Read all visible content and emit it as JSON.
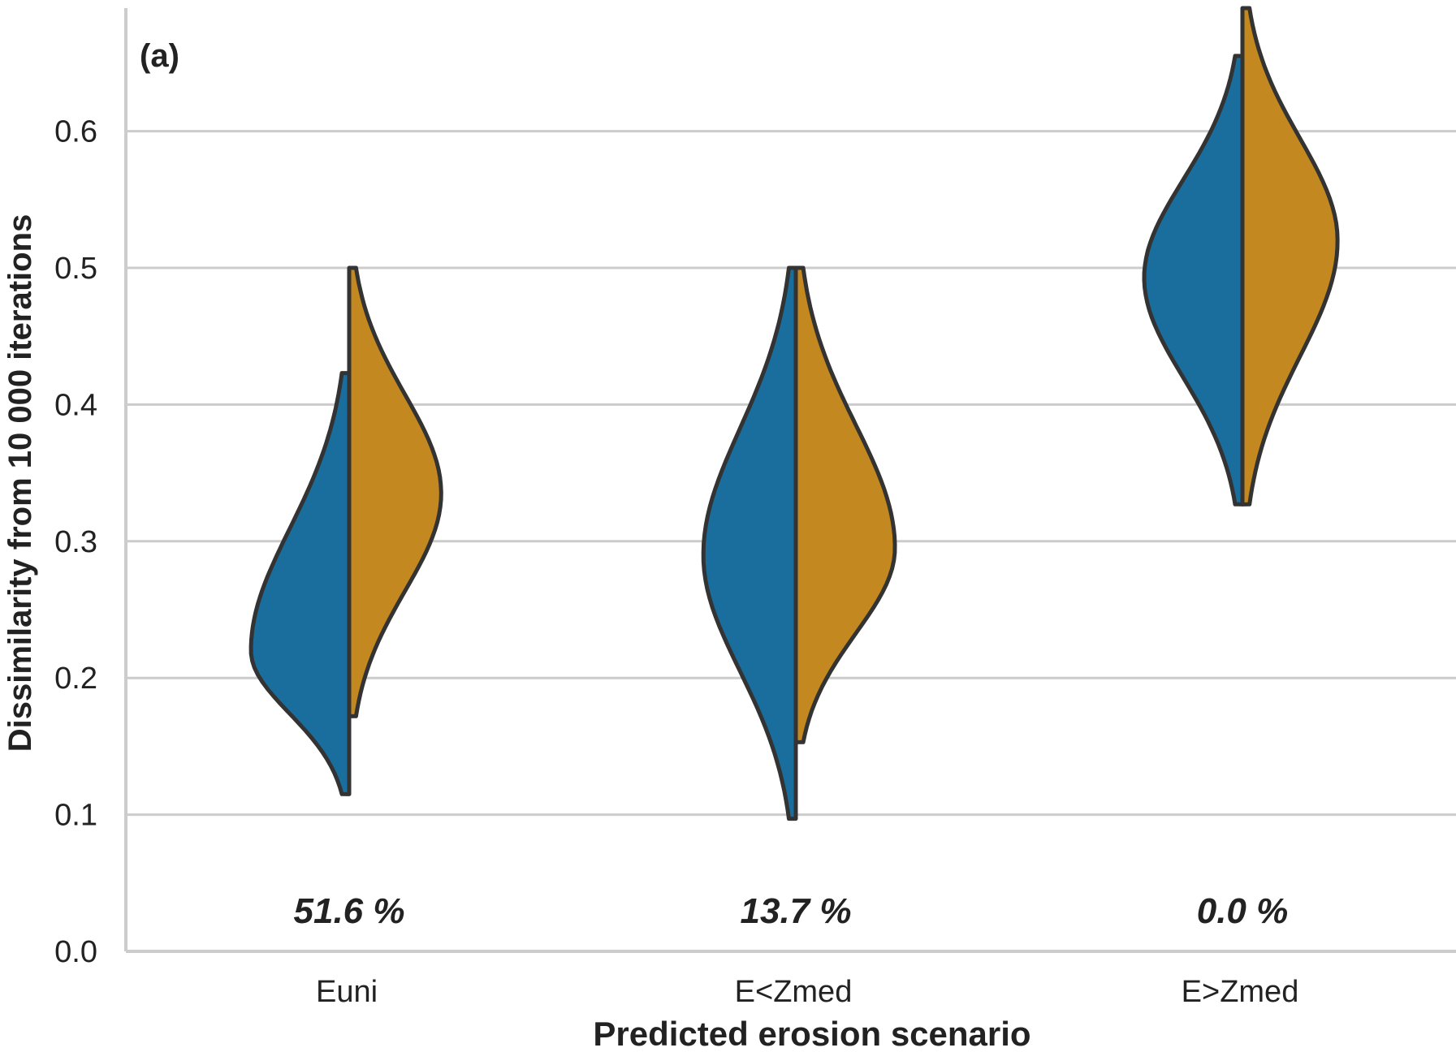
{
  "chart_data": {
    "type": "violin",
    "panel_label": "(a)",
    "xlabel": "Predicted erosion scenario",
    "ylabel": "Dissimilarity from 10 000 iterations",
    "ylim": [
      0.0,
      0.69
    ],
    "yticks": [
      "0.0",
      "0.1",
      "0.2",
      "0.3",
      "0.4",
      "0.5",
      "0.6"
    ],
    "grid": true,
    "split": true,
    "categories": [
      "Euni",
      "E<Zmed",
      "E>Zmed"
    ],
    "annotations": [
      "51.6 %",
      "13.7 %",
      "0.0 %"
    ],
    "colors": {
      "left": "#1a6e9e",
      "right": "#c38820",
      "outline": "#333333",
      "grid": "#cccccc"
    },
    "violins": [
      {
        "category": "Euni",
        "left": {
          "min": 0.115,
          "max": 0.423,
          "mode": 0.22,
          "width": 0.22
        },
        "right": {
          "min": 0.172,
          "max": 0.5,
          "mode": 0.335,
          "width": 0.206
        }
      },
      {
        "category": "E<Zmed",
        "left": {
          "min": 0.097,
          "max": 0.5,
          "mode": 0.29,
          "width": 0.207
        },
        "right": {
          "min": 0.153,
          "max": 0.5,
          "mode": 0.295,
          "width": 0.222
        }
      },
      {
        "category": "E>Zmed",
        "left": {
          "min": 0.327,
          "max": 0.655,
          "mode": 0.493,
          "width": 0.22
        },
        "right": {
          "min": 0.327,
          "max": 0.69,
          "mode": 0.52,
          "width": 0.213
        }
      }
    ]
  }
}
